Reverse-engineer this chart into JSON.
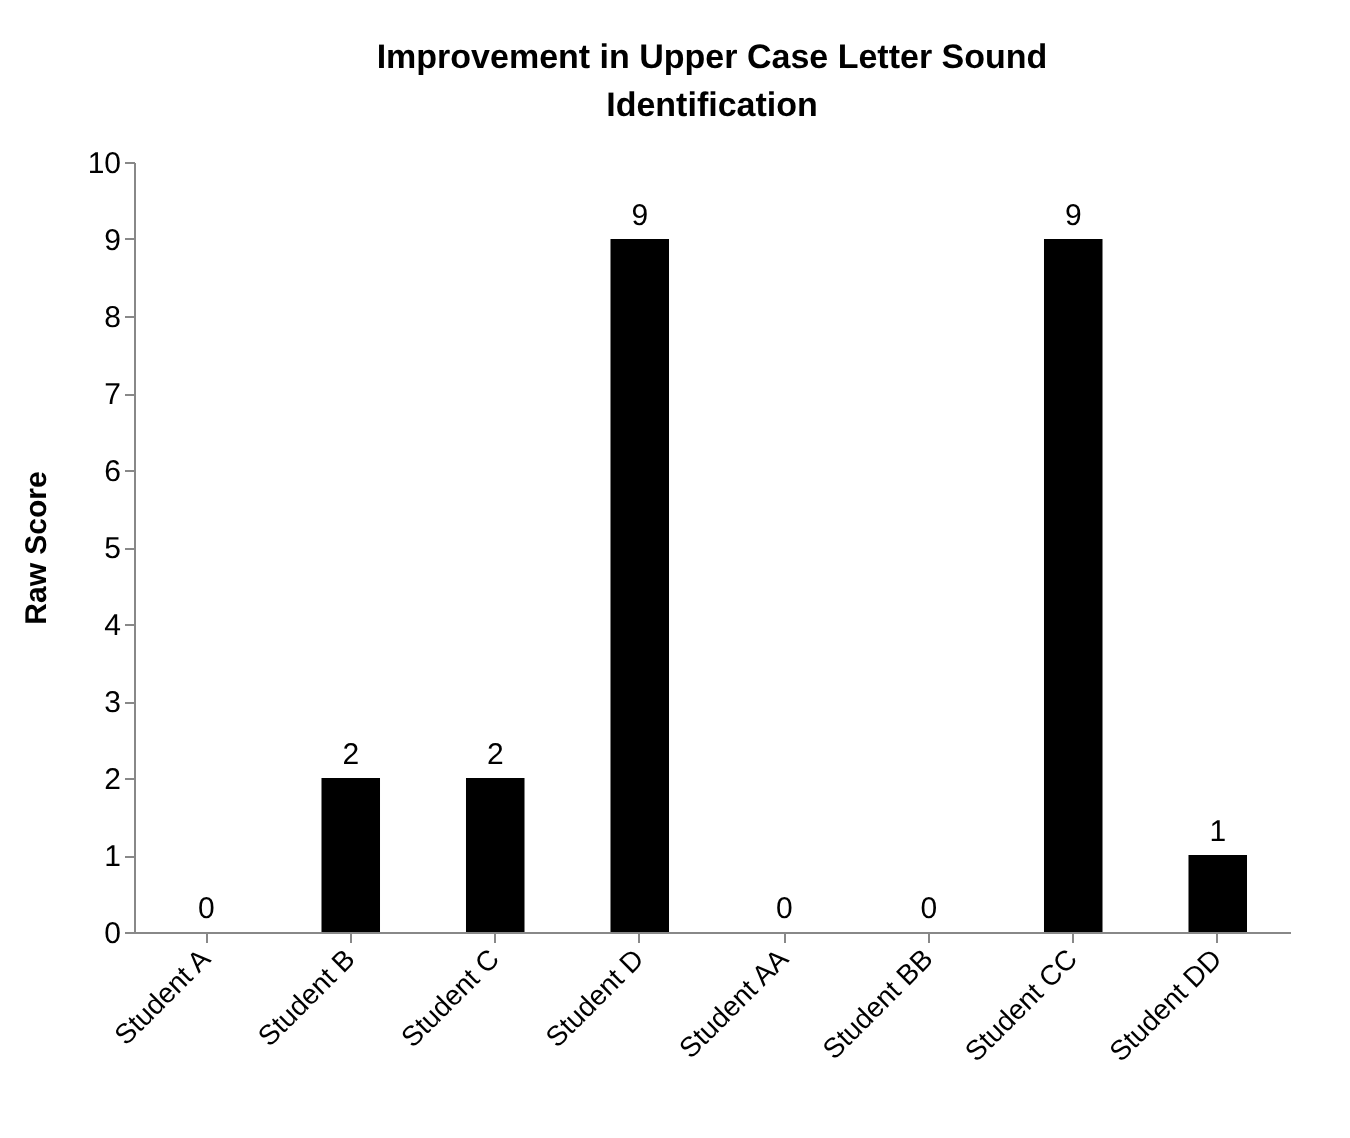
{
  "chart_data": {
    "type": "bar",
    "title": "Improvement in Upper Case Letter Sound Identification",
    "ylabel": "Raw Score",
    "categories": [
      "Student A",
      "Student B",
      "Student C",
      "Student D",
      "Student AA",
      "Student BB",
      "Student CC",
      "Student DD"
    ],
    "values": [
      0,
      2,
      2,
      9,
      0,
      0,
      9,
      1
    ],
    "color": "#000000",
    "ylim": [
      0,
      10
    ],
    "yticks": [
      0,
      1,
      2,
      3,
      4,
      5,
      6,
      7,
      8,
      9,
      10
    ],
    "grid": false,
    "data_labels": true
  }
}
